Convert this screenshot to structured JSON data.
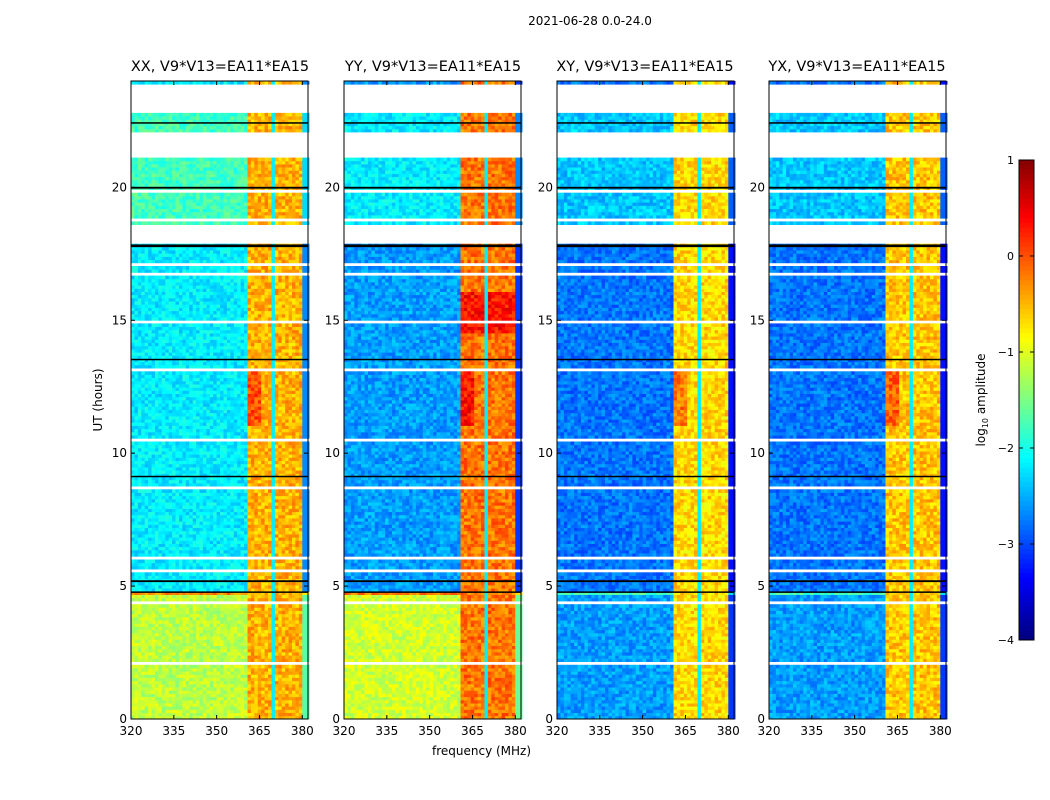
{
  "suptitle": "2021-06-28 0.0-24.0",
  "colorbar": {
    "label_prefix": "log",
    "label_sub": "10",
    "label_suffix": " amplitude",
    "ticks": [
      "1",
      "0",
      "−1",
      "−2",
      "−3",
      "−4"
    ],
    "range": [
      -4,
      1
    ],
    "colormap": "jet"
  },
  "chart_data": {
    "type": "heatmap",
    "title": "2021-06-28 0.0-24.0",
    "xlabel": "frequency (MHz)",
    "ylabel": "UT (hours)",
    "xlim": [
      320,
      382
    ],
    "ylim": [
      0,
      24
    ],
    "xticks": [
      "320",
      "335",
      "350",
      "365",
      "380"
    ],
    "xtick_values": [
      320,
      335,
      350,
      365,
      380
    ],
    "yticks": [
      "0",
      "5",
      "10",
      "15",
      "20"
    ],
    "ytick_values": [
      0,
      5,
      10,
      15,
      20
    ],
    "colorbar_label": "log10 amplitude",
    "colorbar_range": [
      -4,
      1
    ],
    "rfi_band_mhz": [
      360,
      380
    ],
    "rfi_subbands_mhz": [
      [
        360,
        364.5
      ],
      [
        365,
        369
      ],
      [
        369.5,
        374
      ],
      [
        375,
        379
      ]
    ],
    "flagged_gaps_hours": [
      [
        22.6,
        23.0
      ],
      [
        21.6,
        22.3
      ],
      [
        17.6,
        18.3
      ],
      [
        19.8,
        19.95
      ]
    ],
    "panels": [
      {
        "name": "XX",
        "title": "XX, V9*V13=EA11*EA15",
        "background_level_day": -2.2,
        "background_level_early": -1.2,
        "rfi_level": -0.5,
        "early_band_level": -0.3
      },
      {
        "name": "YY",
        "title": "YY, V9*V13=EA11*EA15",
        "background_level_day": -2.6,
        "background_level_early": -1.1,
        "rfi_level": -0.2,
        "early_band_level": -0.2
      },
      {
        "name": "XY",
        "title": "XY, V9*V13=EA11*EA15",
        "background_level_day": -2.8,
        "background_level_early": -2.6,
        "rfi_level": -0.7,
        "early_band_level": -1.8
      },
      {
        "name": "YX",
        "title": "YX, V9*V13=EA11*EA15",
        "background_level_day": -2.8,
        "background_level_early": -2.6,
        "rfi_level": -0.6,
        "early_band_level": -1.8
      }
    ]
  }
}
